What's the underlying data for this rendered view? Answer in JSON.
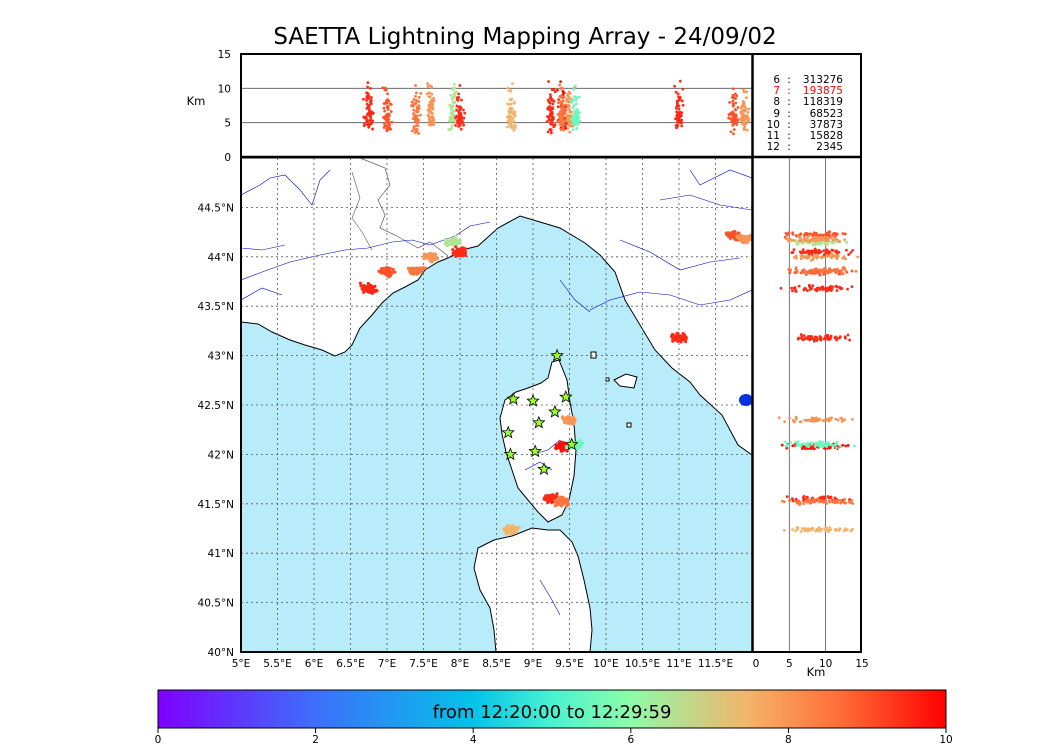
{
  "title": "SAETTA Lightning Mapping Array - 24/09/02",
  "altitude_axis": {
    "label": "Km",
    "ticks": [
      "0",
      "5",
      "10",
      "15"
    ]
  },
  "lat_ticks": [
    "40°N",
    "40.5°N",
    "41°N",
    "41.5°N",
    "42°N",
    "42.5°N",
    "43°N",
    "43.5°N",
    "44°N",
    "44.5°N"
  ],
  "lon_ticks": [
    "5°E",
    "5.5°E",
    "6°E",
    "6.5°E",
    "7°E",
    "7.5°E",
    "8°E",
    "8.5°E",
    "9°E",
    "9.5°E",
    "10°E",
    "10.5°E",
    "11°E",
    "11.5°E"
  ],
  "station_counts": [
    {
      "level": "6",
      "count": "313276",
      "highlight": false
    },
    {
      "level": "7",
      "count": "193875",
      "highlight": true
    },
    {
      "level": "8",
      "count": "118319",
      "highlight": false
    },
    {
      "level": "9",
      "count": "68523",
      "highlight": false
    },
    {
      "level": "10",
      "count": "37873",
      "highlight": false
    },
    {
      "level": "11",
      "count": "15828",
      "highlight": false
    },
    {
      "level": "12",
      "count": "2345",
      "highlight": false
    }
  ],
  "colorbar": {
    "label": "from 12:20:00 to 12:29:59",
    "ticks": [
      "0",
      "2",
      "4",
      "6",
      "8",
      "10"
    ]
  },
  "colors": {
    "sea": "#b8ecfa",
    "station_star": "#9aff2a",
    "grid": "#555555",
    "highlight": "#ff0000"
  },
  "chart_data": {
    "type": "scatter",
    "title": "SAETTA Lightning Mapping Array - 24/09/02",
    "map": {
      "xlim": [
        5,
        12
      ],
      "ylim": [
        40,
        45
      ],
      "xunit": "°E",
      "yunit": "°N",
      "grid": true
    },
    "altitude_range_km": [
      0,
      15
    ],
    "color_scale": {
      "range": [
        0,
        10
      ],
      "colormap": "rainbow",
      "label": "from 12:20:00 to 12:29:59"
    },
    "stations": [
      {
        "lon": 9.33,
        "lat": 43.0
      },
      {
        "lon": 8.73,
        "lat": 42.56
      },
      {
        "lon": 9.0,
        "lat": 42.54
      },
      {
        "lon": 9.45,
        "lat": 42.58
      },
      {
        "lon": 9.08,
        "lat": 42.32
      },
      {
        "lon": 9.3,
        "lat": 42.43
      },
      {
        "lon": 8.66,
        "lat": 42.22
      },
      {
        "lon": 8.69,
        "lat": 42.0
      },
      {
        "lon": 9.03,
        "lat": 42.03
      },
      {
        "lon": 9.15,
        "lat": 41.85
      },
      {
        "lon": 9.53,
        "lat": 42.1
      }
    ],
    "lightning_clusters": [
      {
        "lon": 6.75,
        "lat": 43.68,
        "time": 9.5
      },
      {
        "lon": 7.0,
        "lat": 43.85,
        "time": 9.0
      },
      {
        "lon": 7.4,
        "lat": 43.86,
        "time": 8.5
      },
      {
        "lon": 7.6,
        "lat": 44.0,
        "time": 8.0
      },
      {
        "lon": 7.9,
        "lat": 44.15,
        "time": 6.5
      },
      {
        "lon": 8.0,
        "lat": 44.05,
        "time": 9.5
      },
      {
        "lon": 9.5,
        "lat": 42.35,
        "time": 8.0
      },
      {
        "lon": 9.4,
        "lat": 42.08,
        "time": 9.8
      },
      {
        "lon": 9.58,
        "lat": 42.1,
        "time": 5.5
      },
      {
        "lon": 9.25,
        "lat": 41.55,
        "time": 9.5
      },
      {
        "lon": 9.4,
        "lat": 41.52,
        "time": 8.5
      },
      {
        "lon": 8.7,
        "lat": 41.24,
        "time": 7.5
      },
      {
        "lon": 11.0,
        "lat": 43.18,
        "time": 9.5
      },
      {
        "lon": 11.75,
        "lat": 44.22,
        "time": 9.0
      },
      {
        "lon": 11.9,
        "lat": 44.18,
        "time": 8.0
      }
    ]
  }
}
